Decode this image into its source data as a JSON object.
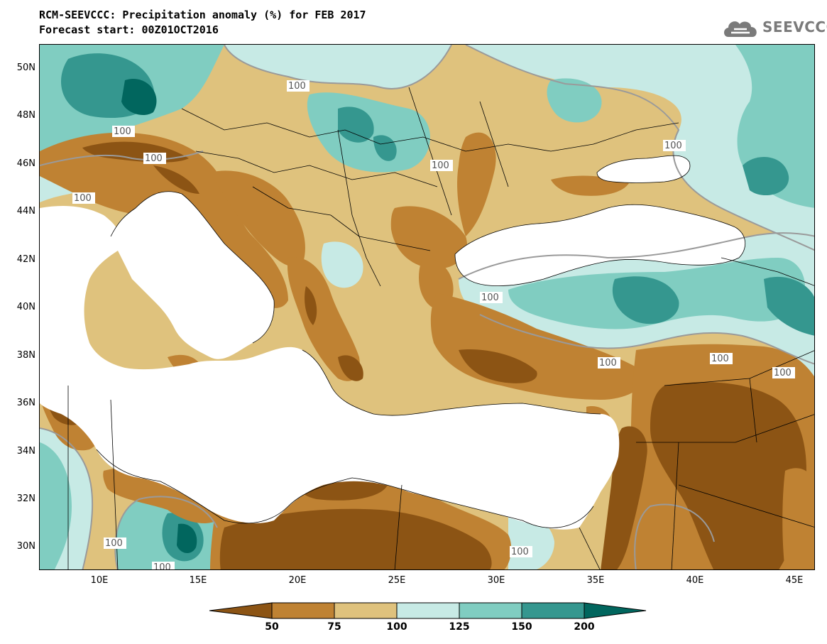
{
  "header": {
    "title": "RCM-SEEVCCC: Precipitation anomaly (%) for FEB 2017",
    "subtitle": "Forecast start: 00Z01OCT2016"
  },
  "logo": {
    "text": "SEEVCCC",
    "icon": "cloud-icon"
  },
  "axes": {
    "lat_labels": [
      "50N",
      "48N",
      "46N",
      "44N",
      "42N",
      "40N",
      "38N",
      "36N",
      "34N",
      "32N",
      "30N"
    ],
    "lon_labels": [
      "10E",
      "15E",
      "20E",
      "25E",
      "30E",
      "35E",
      "40E",
      "45E"
    ]
  },
  "contour_label": "100",
  "colorbar": {
    "tick_labels": [
      "50",
      "75",
      "100",
      "125",
      "150",
      "200"
    ],
    "colors": [
      "#8c5414",
      "#bf8233",
      "#dfc27d",
      "#c7eae5",
      "#80cdc1",
      "#35978f",
      "#01665e"
    ]
  },
  "colors": {
    "sea": "#ffffff",
    "border": "#000000",
    "contour_line": "#9a9a9a"
  }
}
